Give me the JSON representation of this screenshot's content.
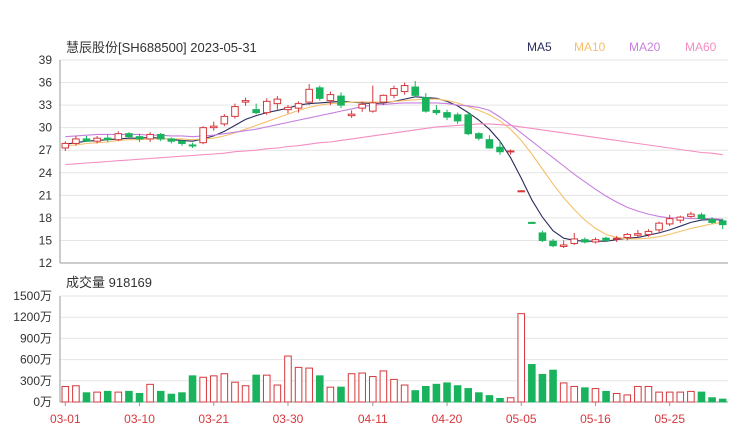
{
  "chart_data": {
    "type": "candlestick",
    "title": "慧辰股份[SH688500] 2023-05-31",
    "legend": [
      {
        "label": "MA5",
        "color": "#2a2d5c"
      },
      {
        "label": "MA10",
        "color": "#f5c06b"
      },
      {
        "label": "MA20",
        "color": "#c77fde"
      },
      {
        "label": "MA60",
        "color": "#f48ec2"
      }
    ],
    "colors": {
      "up": "#d6383c",
      "down": "#18b35c"
    },
    "price_axis": {
      "ylim": [
        12,
        39
      ],
      "ticks": [
        "39",
        "36",
        "33",
        "30",
        "27",
        "24",
        "21",
        "18",
        "15",
        "12"
      ]
    },
    "volume": {
      "label": "成交量",
      "value": "918169",
      "ylim": [
        0,
        1500
      ],
      "unit": "万",
      "ticks": [
        "1500万",
        "1200万",
        "900万",
        "600万",
        "300万",
        "0万"
      ]
    },
    "x_tick_labels": [
      {
        "label": "03-01",
        "index": 0
      },
      {
        "label": "03-10",
        "index": 7
      },
      {
        "label": "03-21",
        "index": 14
      },
      {
        "label": "03-30",
        "index": 21
      },
      {
        "label": "04-11",
        "index": 29
      },
      {
        "label": "04-20",
        "index": 36
      },
      {
        "label": "05-05",
        "index": 43
      },
      {
        "label": "05-16",
        "index": 50
      },
      {
        "label": "05-25",
        "index": 57
      }
    ],
    "ohlc": [
      [
        27.3,
        28.2,
        26.9,
        27.9
      ],
      [
        27.9,
        28.9,
        27.6,
        28.5
      ],
      [
        28.5,
        28.9,
        28.1,
        28.2
      ],
      [
        28.2,
        28.9,
        27.9,
        28.6
      ],
      [
        28.6,
        29.1,
        28.1,
        28.4
      ],
      [
        28.4,
        29.5,
        28.2,
        29.2
      ],
      [
        29.2,
        29.4,
        28.6,
        28.8
      ],
      [
        28.8,
        29.2,
        28.1,
        28.5
      ],
      [
        28.5,
        29.4,
        28.1,
        29.1
      ],
      [
        29.1,
        29.3,
        28.2,
        28.5
      ],
      [
        28.5,
        28.7,
        27.9,
        28.2
      ],
      [
        28.2,
        28.4,
        27.6,
        27.9
      ],
      [
        27.7,
        28.0,
        27.3,
        27.6
      ],
      [
        28.0,
        30.2,
        27.8,
        30.0
      ],
      [
        30.0,
        30.8,
        29.6,
        30.2
      ],
      [
        30.5,
        31.8,
        30.2,
        31.5
      ],
      [
        31.5,
        33.2,
        31.2,
        32.8
      ],
      [
        33.4,
        34.0,
        32.9,
        33.6
      ],
      [
        32.4,
        33.2,
        31.8,
        32.0
      ],
      [
        32.0,
        33.9,
        31.7,
        33.5
      ],
      [
        33.2,
        34.2,
        32.4,
        33.8
      ],
      [
        32.4,
        33.0,
        31.9,
        32.7
      ],
      [
        32.6,
        33.5,
        32.0,
        33.2
      ],
      [
        33.4,
        35.8,
        33.0,
        35.1
      ],
      [
        35.3,
        35.6,
        33.6,
        33.9
      ],
      [
        33.6,
        34.8,
        33.0,
        34.4
      ],
      [
        34.2,
        34.7,
        32.6,
        33.0
      ],
      [
        31.6,
        32.3,
        31.3,
        31.8
      ],
      [
        32.6,
        33.5,
        32.1,
        33.1
      ],
      [
        32.2,
        35.6,
        32.0,
        33.3
      ],
      [
        33.4,
        34.4,
        33.0,
        34.3
      ],
      [
        34.3,
        35.6,
        33.9,
        35.2
      ],
      [
        34.8,
        36.0,
        34.4,
        35.6
      ],
      [
        35.4,
        36.2,
        34.0,
        34.3
      ],
      [
        34.0,
        34.6,
        32.0,
        32.2
      ],
      [
        32.3,
        33.0,
        31.7,
        32.0
      ],
      [
        32.0,
        32.4,
        31.0,
        31.4
      ],
      [
        31.7,
        32.0,
        30.5,
        30.9
      ],
      [
        31.7,
        32.0,
        29.0,
        29.2
      ],
      [
        29.2,
        29.4,
        28.3,
        28.6
      ],
      [
        28.4,
        29.0,
        27.2,
        27.3
      ],
      [
        27.4,
        28.2,
        26.4,
        26.8
      ],
      [
        26.9,
        27.1,
        26.4,
        26.9
      ],
      [
        21.6,
        21.7,
        21.5,
        21.6
      ],
      [
        17.4,
        17.5,
        17.2,
        17.3
      ],
      [
        16.0,
        16.3,
        14.8,
        15.0
      ],
      [
        14.9,
        15.2,
        14.1,
        14.3
      ],
      [
        14.2,
        15.0,
        14.0,
        14.4
      ],
      [
        14.6,
        16.0,
        14.4,
        15.2
      ],
      [
        15.1,
        15.4,
        14.6,
        14.8
      ],
      [
        14.8,
        15.4,
        14.6,
        15.1
      ],
      [
        15.3,
        15.5,
        14.9,
        15.0
      ],
      [
        15.2,
        15.6,
        14.8,
        15.3
      ],
      [
        15.4,
        16.0,
        15.0,
        15.8
      ],
      [
        15.7,
        16.4,
        15.4,
        15.9
      ],
      [
        15.8,
        16.5,
        15.5,
        16.2
      ],
      [
        16.4,
        17.5,
        16.0,
        17.3
      ],
      [
        17.2,
        18.4,
        16.9,
        17.9
      ],
      [
        17.7,
        18.3,
        17.3,
        18.1
      ],
      [
        18.2,
        18.8,
        18.0,
        18.5
      ],
      [
        18.4,
        18.7,
        17.6,
        17.9
      ],
      [
        17.8,
        18.1,
        17.2,
        17.4
      ],
      [
        17.6,
        17.9,
        16.5,
        17.1
      ]
    ],
    "volumes": [
      220,
      230,
      130,
      140,
      150,
      140,
      150,
      120,
      250,
      150,
      110,
      130,
      370,
      350,
      370,
      400,
      280,
      230,
      380,
      380,
      240,
      650,
      490,
      480,
      370,
      210,
      210,
      400,
      410,
      360,
      440,
      320,
      240,
      160,
      220,
      250,
      270,
      230,
      190,
      130,
      90,
      50,
      60,
      1250,
      530,
      390,
      450,
      270,
      220,
      200,
      190,
      150,
      120,
      100,
      220,
      220,
      140,
      140,
      140,
      150,
      140,
      60,
      40
    ],
    "ma": {
      "MA5": [
        27.8,
        28.0,
        28.2,
        28.3,
        28.4,
        28.5,
        28.6,
        28.6,
        28.7,
        28.6,
        28.4,
        28.3,
        28.2,
        28.5,
        28.9,
        29.5,
        30.3,
        31.1,
        31.6,
        32.0,
        32.3,
        32.6,
        33.0,
        33.2,
        33.3,
        33.4,
        33.5,
        33.4,
        33.3,
        33.2,
        33.3,
        33.5,
        33.8,
        34.1,
        34.0,
        33.9,
        33.5,
        32.9,
        32.0,
        31.0,
        29.8,
        28.2,
        26.0,
        23.3,
        20.4,
        18.1,
        16.3,
        15.3,
        15.0,
        14.9,
        14.9,
        14.9,
        15.1,
        15.3,
        15.4,
        15.7,
        16.0,
        16.4,
        16.9,
        17.4,
        17.7,
        17.8,
        17.7
      ],
      "MA10": [
        27.6,
        27.7,
        27.9,
        28.0,
        28.1,
        28.3,
        28.4,
        28.4,
        28.5,
        28.5,
        28.5,
        28.5,
        28.4,
        28.5,
        28.6,
        28.9,
        29.3,
        29.8,
        30.3,
        30.8,
        31.3,
        31.8,
        32.3,
        32.7,
        33.0,
        33.2,
        33.3,
        33.4,
        33.4,
        33.4,
        33.4,
        33.5,
        33.6,
        33.7,
        33.8,
        33.8,
        33.6,
        33.3,
        32.8,
        32.3,
        31.7,
        30.9,
        29.8,
        28.3,
        26.5,
        24.5,
        22.5,
        20.7,
        19.1,
        17.7,
        16.6,
        15.8,
        15.4,
        15.2,
        15.2,
        15.3,
        15.5,
        15.8,
        16.2,
        16.6,
        16.9,
        17.2,
        17.4
      ],
      "MA20": [
        28.8,
        28.9,
        29.0,
        29.1,
        29.1,
        29.1,
        29.1,
        29.1,
        29.0,
        29.0,
        28.9,
        28.9,
        28.8,
        28.9,
        29.0,
        29.2,
        29.4,
        29.6,
        29.8,
        30.1,
        30.4,
        30.7,
        31.0,
        31.3,
        31.6,
        31.9,
        32.2,
        32.5,
        32.8,
        33.0,
        33.1,
        33.2,
        33.3,
        33.3,
        33.3,
        33.3,
        33.2,
        33.0,
        32.9,
        32.7,
        32.3,
        31.4,
        30.4,
        29.3,
        28.2,
        27.1,
        26.0,
        24.9,
        23.8,
        22.8,
        21.8,
        20.9,
        20.1,
        19.4,
        18.9,
        18.5,
        18.2,
        18.0,
        18.0,
        17.9,
        17.9,
        17.9,
        17.8
      ],
      "MA60": [
        25.1,
        25.2,
        25.3,
        25.4,
        25.5,
        25.6,
        25.7,
        25.8,
        25.9,
        26.0,
        26.1,
        26.2,
        26.3,
        26.4,
        26.5,
        26.6,
        26.8,
        26.9,
        27.0,
        27.2,
        27.3,
        27.5,
        27.6,
        27.8,
        28.0,
        28.1,
        28.3,
        28.5,
        28.7,
        28.9,
        29.1,
        29.3,
        29.5,
        29.7,
        29.9,
        30.1,
        30.2,
        30.3,
        30.4,
        30.5,
        30.5,
        30.4,
        30.3,
        30.1,
        29.9,
        29.7,
        29.5,
        29.3,
        29.1,
        28.9,
        28.7,
        28.5,
        28.3,
        28.1,
        27.9,
        27.7,
        27.5,
        27.3,
        27.1,
        26.9,
        26.7,
        26.6,
        26.4
      ]
    }
  }
}
